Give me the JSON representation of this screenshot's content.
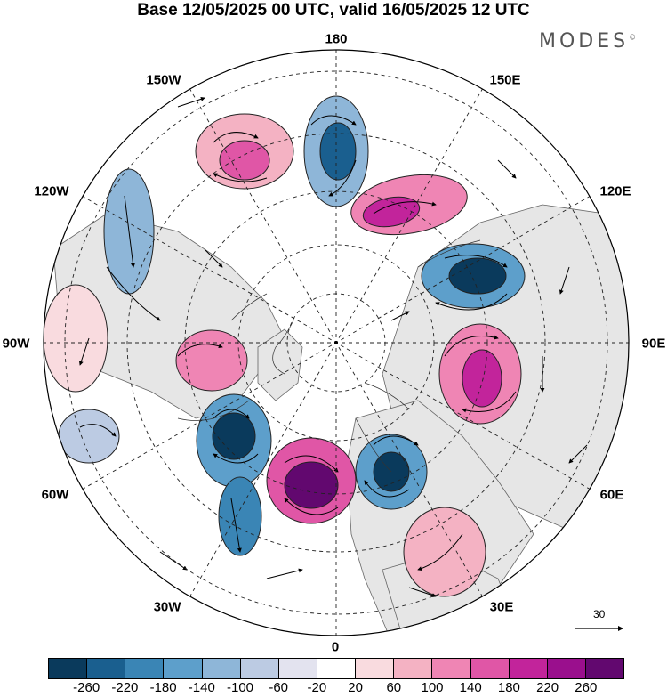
{
  "title": "Base 12/05/2025 00 UTC, valid 16/05/2025 12 UTC",
  "brand": "MODES",
  "brand_mark": "©",
  "map": {
    "projection": "north-polar-stereographic",
    "longitude_labels": {
      "top": "180",
      "bottom": "0",
      "left": "90W",
      "right": "90E",
      "upper_left_1": "150W",
      "upper_left_2": "120W",
      "upper_right_1": "150E",
      "upper_right_2": "120E",
      "lower_left_1": "60W",
      "lower_left_2": "30W",
      "lower_right_1": "60E",
      "lower_right_2": "30E"
    },
    "vector_scale_label": "30",
    "colors": {
      "land": "#e6e6e6",
      "ocean": "#ffffff",
      "coast": "#555555",
      "grid": "#222222"
    },
    "anomalies": [
      {
        "sign": "neg",
        "strength": 3,
        "center_lon": -165,
        "center_lat": 55
      },
      {
        "sign": "pos",
        "strength": 2,
        "center_lon": -140,
        "center_lat": 48
      },
      {
        "sign": "pos",
        "strength": 3,
        "center_lon": 150,
        "center_lat": 55
      },
      {
        "sign": "neg",
        "strength": 3,
        "center_lon": 110,
        "center_lat": 60
      },
      {
        "sign": "pos",
        "strength": 3,
        "center_lon": 80,
        "center_lat": 55
      },
      {
        "sign": "neg",
        "strength": 3,
        "center_lon": 30,
        "center_lat": 60
      },
      {
        "sign": "pos",
        "strength": 4,
        "center_lon": 0,
        "center_lat": 55
      },
      {
        "sign": "neg",
        "strength": 3,
        "center_lon": -30,
        "center_lat": 60
      },
      {
        "sign": "pos",
        "strength": 2,
        "center_lon": -80,
        "center_lat": 65
      },
      {
        "sign": "neg",
        "strength": 2,
        "center_lon": -110,
        "center_lat": 45
      },
      {
        "sign": "neg",
        "strength": 2,
        "center_lon": -20,
        "center_lat": 35
      }
    ]
  },
  "colorbar": {
    "colors": [
      "#0a3a5c",
      "#1a5f8f",
      "#3a85b5",
      "#5d9fcb",
      "#8eb6d8",
      "#bccbe3",
      "#e3e3ef",
      "#ffffff",
      "#f9dbdf",
      "#f4b2c3",
      "#ef85b4",
      "#e056a6",
      "#c2249b",
      "#9a0f8d",
      "#62086f"
    ],
    "ticks": [
      "-260",
      "-220",
      "-180",
      "-140",
      "-100",
      "-60",
      "-20",
      "20",
      "60",
      "100",
      "140",
      "180",
      "220",
      "260"
    ]
  }
}
